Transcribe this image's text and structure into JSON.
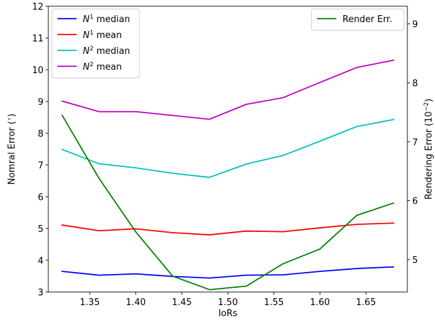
{
  "chart_data": {
    "type": "line",
    "xlabel": "IoRs",
    "x": [
      1.32,
      1.36,
      1.4,
      1.44,
      1.48,
      1.52,
      1.56,
      1.6,
      1.64,
      1.68
    ],
    "xlim": [
      1.305,
      1.695
    ],
    "xticks": [
      1.35,
      1.4,
      1.45,
      1.5,
      1.55,
      1.6,
      1.65
    ],
    "xtick_labels": [
      "1.35",
      "1.40",
      "1.45",
      "1.50",
      "1.55",
      "1.60",
      "1.65"
    ],
    "left_axis": {
      "label_main": "Nomral Error (",
      "label_sup": "∘",
      "label_end": ")",
      "ylim": [
        3,
        12
      ],
      "ticks": [
        3,
        4,
        5,
        6,
        7,
        8,
        9,
        10,
        11,
        12
      ],
      "tick_labels": [
        "3",
        "4",
        "5",
        "6",
        "7",
        "8",
        "9",
        "10",
        "11",
        "12"
      ]
    },
    "right_axis": {
      "label_main": "Rendering Error (10",
      "label_sup": "−2",
      "label_end": ")",
      "ylim": [
        4.45,
        9.3
      ],
      "ticks": [
        5,
        6,
        7,
        8,
        9
      ],
      "tick_labels": [
        "5",
        "6",
        "7",
        "8",
        "9"
      ]
    },
    "series": [
      {
        "base": "N",
        "sup": "1",
        "suffix": " median",
        "color": "#0000ff",
        "axis": "left",
        "values": [
          3.65,
          3.53,
          3.57,
          3.49,
          3.44,
          3.53,
          3.54,
          3.65,
          3.74,
          3.79
        ]
      },
      {
        "base": "N",
        "sup": "1",
        "suffix": " mean",
        "color": "#ff0000",
        "axis": "left",
        "values": [
          5.11,
          4.93,
          4.99,
          4.87,
          4.8,
          4.92,
          4.9,
          5.02,
          5.13,
          5.17
        ]
      },
      {
        "base": "N",
        "sup": "2",
        "suffix": " median",
        "color": "#00bfbf",
        "axis": "left",
        "values": [
          7.49,
          7.04,
          6.91,
          6.74,
          6.61,
          7.03,
          7.3,
          7.75,
          8.21,
          8.43
        ]
      },
      {
        "base": "N",
        "sup": "2",
        "suffix": " mean",
        "color": "#bf00bf",
        "axis": "left",
        "values": [
          9.01,
          8.68,
          8.68,
          8.56,
          8.44,
          8.91,
          9.12,
          9.6,
          10.07,
          10.3
        ]
      },
      {
        "name": "Render Err.",
        "color": "#008000",
        "axis": "right",
        "values": [
          7.45,
          6.38,
          5.47,
          4.72,
          4.49,
          4.55,
          4.93,
          5.18,
          5.75,
          5.96
        ]
      }
    ],
    "legend_left_placement": "upper-left",
    "legend_right_placement": "upper-right",
    "grid": false
  }
}
